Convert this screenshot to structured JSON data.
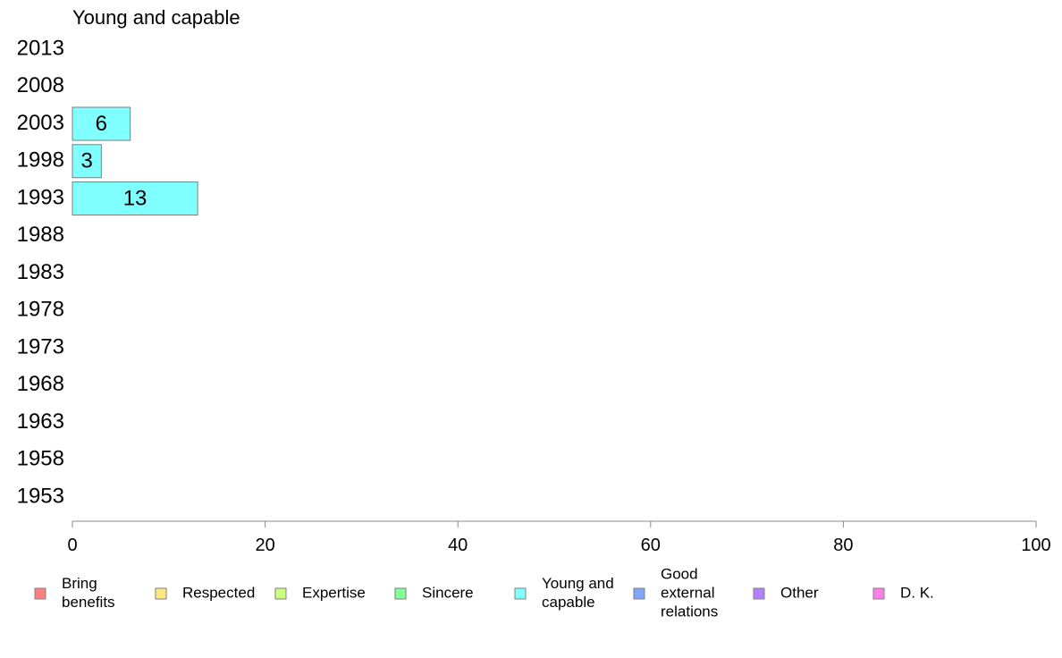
{
  "chart_data": {
    "type": "bar",
    "orientation": "horizontal",
    "title": "Young and capable",
    "categories": [
      "2013",
      "2008",
      "2003",
      "1998",
      "1993",
      "1988",
      "1983",
      "1978",
      "1973",
      "1968",
      "1963",
      "1958",
      "1953"
    ],
    "series": [
      {
        "name": "Young and capable",
        "color": "#80ffff",
        "values": [
          null,
          null,
          6,
          3,
          13,
          null,
          null,
          null,
          null,
          null,
          null,
          null,
          null
        ]
      }
    ],
    "xlim": [
      0,
      100
    ],
    "xticks": [
      "0",
      "20",
      "40",
      "60",
      "80",
      "100"
    ],
    "grid": false,
    "legend_position": "bottom",
    "legend": [
      {
        "label": [
          "Bring",
          "benefits"
        ],
        "color": "#ff8080"
      },
      {
        "label": [
          "Respected"
        ],
        "color": "#ffe680"
      },
      {
        "label": [
          "Expertise"
        ],
        "color": "#ccff80"
      },
      {
        "label": [
          "Sincere"
        ],
        "color": "#80ff99"
      },
      {
        "label": [
          "Young and",
          "capable"
        ],
        "color": "#80ffff"
      },
      {
        "label": [
          "Good",
          "external",
          "relations"
        ],
        "color": "#80a6ff"
      },
      {
        "label": [
          "Other"
        ],
        "color": "#b380ff"
      },
      {
        "label": [
          "D. K."
        ],
        "color": "#ff80e6"
      }
    ]
  }
}
